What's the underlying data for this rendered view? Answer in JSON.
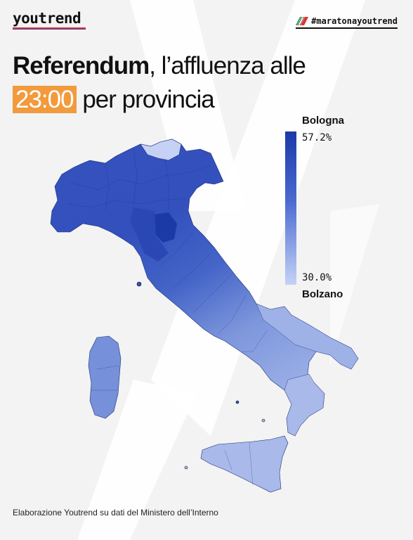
{
  "brand": {
    "logo_text": "youtrend"
  },
  "hashtag": {
    "text": "#maratonayoutrend",
    "flag_icon": "italy-flag-icon"
  },
  "title": {
    "bold_part": "Referendum",
    "rest_line1": ", l’affluenza alle",
    "time_highlight": "23:00",
    "rest_line2": " per provincia",
    "highlight_color": "#f29a3c"
  },
  "legend": {
    "top_label": "Bologna",
    "max_value": "57.2%",
    "min_value": "30.0%",
    "bottom_label": "Bolzano",
    "max_color": "#1c3aa6",
    "min_color": "#c5d2f6"
  },
  "map": {
    "subject": "Italy provinces turnout choropleth",
    "color_scale": [
      "#c5d2f6",
      "#3d5cc4",
      "#1c3aa6"
    ]
  },
  "footer": {
    "source": "Elaborazione Youtrend su dati del Ministero dell’Interno"
  }
}
